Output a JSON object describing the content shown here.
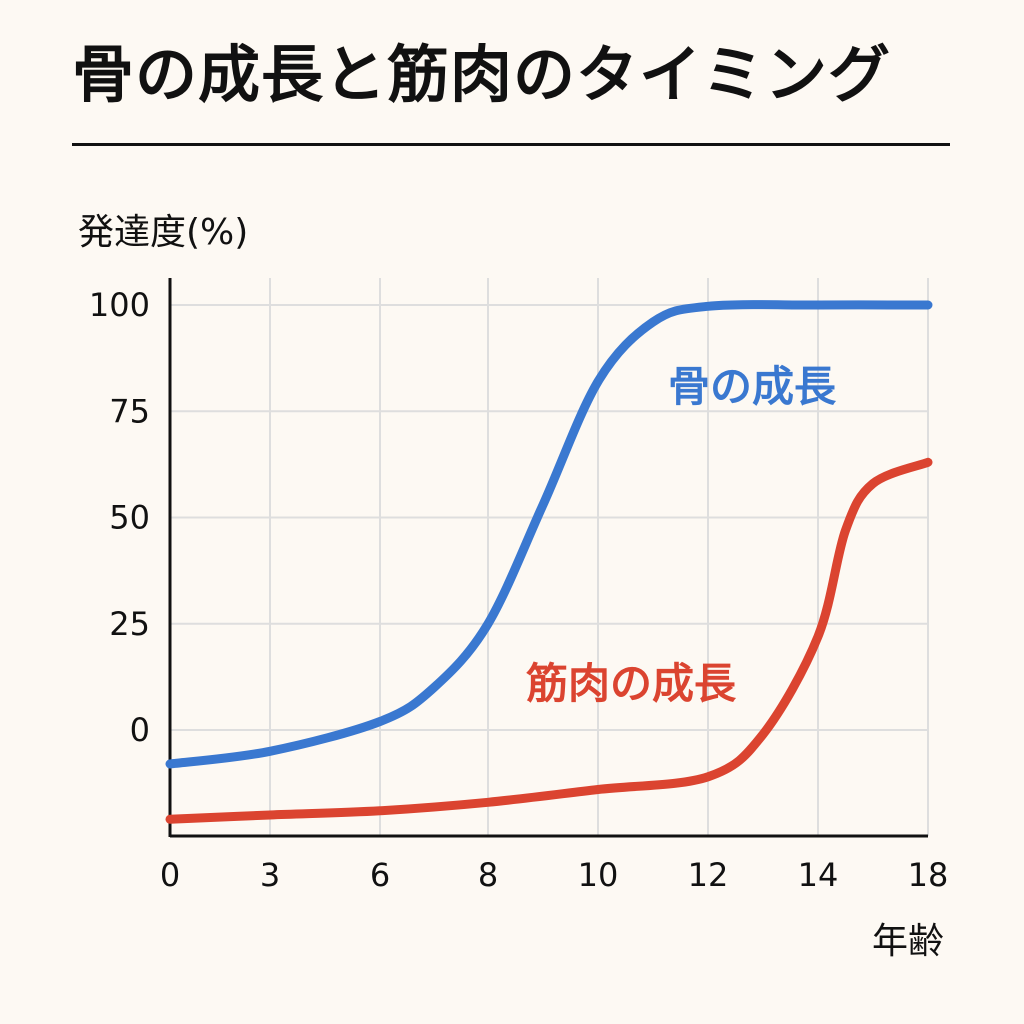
{
  "chart_data": {
    "type": "line",
    "title": "骨の成長と筋肉のタイミング",
    "ylabel": "発達度(%)",
    "xlabel": "年齢",
    "x_ticks": [
      0,
      3,
      6,
      8,
      10,
      12,
      14,
      18
    ],
    "y_ticks": [
      0,
      25,
      50,
      75,
      100
    ],
    "ylim": [
      -25,
      106
    ],
    "grid": true,
    "legend": "inline labels",
    "series": [
      {
        "name": "骨の成長",
        "color": "#3a78d0",
        "points": [
          {
            "x": 0,
            "y": -8
          },
          {
            "x": 3,
            "y": -5
          },
          {
            "x": 6,
            "y": 2
          },
          {
            "x": 7,
            "y": 10
          },
          {
            "x": 8,
            "y": 25
          },
          {
            "x": 9,
            "y": 53
          },
          {
            "x": 10,
            "y": 82
          },
          {
            "x": 11,
            "y": 96
          },
          {
            "x": 12,
            "y": 99.7
          },
          {
            "x": 14,
            "y": 100
          },
          {
            "x": 18,
            "y": 100
          }
        ]
      },
      {
        "name": "筋肉の成長",
        "color": "#db4430",
        "points": [
          {
            "x": 0,
            "y": -21
          },
          {
            "x": 3,
            "y": -20
          },
          {
            "x": 6,
            "y": -19
          },
          {
            "x": 8,
            "y": -17
          },
          {
            "x": 10,
            "y": -14
          },
          {
            "x": 12,
            "y": -11
          },
          {
            "x": 13,
            "y": -1
          },
          {
            "x": 14,
            "y": 22
          },
          {
            "x": 15,
            "y": 47
          },
          {
            "x": 16,
            "y": 58
          },
          {
            "x": 18,
            "y": 63
          }
        ]
      }
    ]
  }
}
